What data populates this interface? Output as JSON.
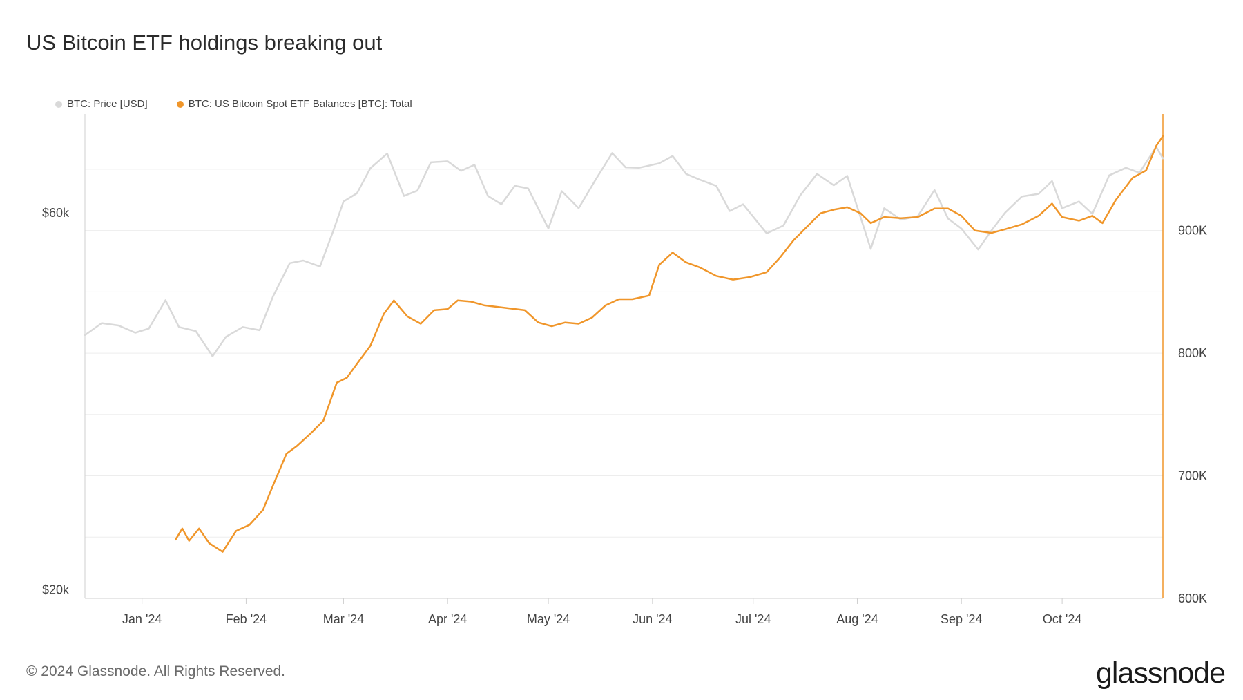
{
  "title": "US Bitcoin ETF holdings breaking out",
  "footer": "© 2024 Glassnode. All Rights Reserved.",
  "logo": "glassnode",
  "colors": {
    "price": "#d9d9d9",
    "etf": "#f0962a",
    "grid": "#ededed",
    "axis": "#cfcfcf"
  },
  "legend": [
    {
      "label": "BTC: Price [USD]",
      "color": "#d9d9d9"
    },
    {
      "label": "BTC: US Bitcoin Spot ETF Balances [BTC]: Total",
      "color": "#f0962a"
    }
  ],
  "chart_data": {
    "type": "line",
    "x_ticks": [
      "Jan '24",
      "Feb '24",
      "Mar '24",
      "Apr '24",
      "May '24",
      "Jun '24",
      "Jul '24",
      "Aug '24",
      "Sep '24",
      "Oct '24"
    ],
    "x_tick_dates": [
      "2024-01-01",
      "2024-02-01",
      "2024-03-01",
      "2024-04-01",
      "2024-05-01",
      "2024-06-01",
      "2024-07-01",
      "2024-08-01",
      "2024-09-01",
      "2024-10-01"
    ],
    "xlim": [
      "2023-12-15",
      "2024-10-31"
    ],
    "y_left": {
      "ticks": [
        "$20k",
        "$60k"
      ],
      "tick_values": [
        20000,
        60000
      ],
      "log_scale": true,
      "ylim": [
        19500,
        80000
      ]
    },
    "y_right": {
      "ticks": [
        "600K",
        "700K",
        "800K",
        "900K"
      ],
      "tick_values": [
        600000,
        700000,
        800000,
        900000
      ],
      "ylim": [
        600000,
        995000
      ]
    },
    "grid": true,
    "legend_position": "top-left",
    "series": [
      {
        "name": "BTC: Price [USD]",
        "axis": "left",
        "points": [
          [
            "2023-12-15",
            42000
          ],
          [
            "2023-12-20",
            43500
          ],
          [
            "2023-12-25",
            43200
          ],
          [
            "2023-12-30",
            42300
          ],
          [
            "2024-01-03",
            42800
          ],
          [
            "2024-01-08",
            46500
          ],
          [
            "2024-01-12",
            43000
          ],
          [
            "2024-01-17",
            42500
          ],
          [
            "2024-01-22",
            39500
          ],
          [
            "2024-01-26",
            41800
          ],
          [
            "2024-01-31",
            43000
          ],
          [
            "2024-02-05",
            42600
          ],
          [
            "2024-02-09",
            47000
          ],
          [
            "2024-02-14",
            51800
          ],
          [
            "2024-02-18",
            52200
          ],
          [
            "2024-02-23",
            51300
          ],
          [
            "2024-02-27",
            57000
          ],
          [
            "2024-03-01",
            62000
          ],
          [
            "2024-03-05",
            63500
          ],
          [
            "2024-03-09",
            68300
          ],
          [
            "2024-03-14",
            71300
          ],
          [
            "2024-03-19",
            63000
          ],
          [
            "2024-03-23",
            64000
          ],
          [
            "2024-03-27",
            69500
          ],
          [
            "2024-04-01",
            69700
          ],
          [
            "2024-04-05",
            67800
          ],
          [
            "2024-04-09",
            69000
          ],
          [
            "2024-04-13",
            63000
          ],
          [
            "2024-04-17",
            61500
          ],
          [
            "2024-04-21",
            64900
          ],
          [
            "2024-04-25",
            64400
          ],
          [
            "2024-05-01",
            57300
          ],
          [
            "2024-05-05",
            63900
          ],
          [
            "2024-05-10",
            60800
          ],
          [
            "2024-05-15",
            66000
          ],
          [
            "2024-05-20",
            71400
          ],
          [
            "2024-05-24",
            68500
          ],
          [
            "2024-05-28",
            68400
          ],
          [
            "2024-06-03",
            69300
          ],
          [
            "2024-06-07",
            70800
          ],
          [
            "2024-06-11",
            67200
          ],
          [
            "2024-06-15",
            66100
          ],
          [
            "2024-06-20",
            64900
          ],
          [
            "2024-06-24",
            60300
          ],
          [
            "2024-06-28",
            61500
          ],
          [
            "2024-07-05",
            56500
          ],
          [
            "2024-07-10",
            57800
          ],
          [
            "2024-07-15",
            63100
          ],
          [
            "2024-07-20",
            67200
          ],
          [
            "2024-07-25",
            65000
          ],
          [
            "2024-07-29",
            66800
          ],
          [
            "2024-08-05",
            54000
          ],
          [
            "2024-08-09",
            60800
          ],
          [
            "2024-08-14",
            58800
          ],
          [
            "2024-08-19",
            59400
          ],
          [
            "2024-08-24",
            64100
          ],
          [
            "2024-08-28",
            59000
          ],
          [
            "2024-09-01",
            57300
          ],
          [
            "2024-09-06",
            53900
          ],
          [
            "2024-09-10",
            57000
          ],
          [
            "2024-09-14",
            60000
          ],
          [
            "2024-09-19",
            62900
          ],
          [
            "2024-09-24",
            63400
          ],
          [
            "2024-09-28",
            65800
          ],
          [
            "2024-10-01",
            60800
          ],
          [
            "2024-10-06",
            62000
          ],
          [
            "2024-10-10",
            59800
          ],
          [
            "2024-10-15",
            66900
          ],
          [
            "2024-10-20",
            68400
          ],
          [
            "2024-10-24",
            67400
          ],
          [
            "2024-10-29",
            72700
          ],
          [
            "2024-10-31",
            70300
          ]
        ]
      },
      {
        "name": "BTC: US Bitcoin Spot ETF Balances [BTC]: Total",
        "axis": "right",
        "points": [
          [
            "2024-01-11",
            648000
          ],
          [
            "2024-01-13",
            657000
          ],
          [
            "2024-01-15",
            647000
          ],
          [
            "2024-01-18",
            657000
          ],
          [
            "2024-01-21",
            645000
          ],
          [
            "2024-01-25",
            638000
          ],
          [
            "2024-01-29",
            655000
          ],
          [
            "2024-02-02",
            660000
          ],
          [
            "2024-02-06",
            672000
          ],
          [
            "2024-02-09",
            692000
          ],
          [
            "2024-02-13",
            718000
          ],
          [
            "2024-02-16",
            724000
          ],
          [
            "2024-02-20",
            734000
          ],
          [
            "2024-02-24",
            745000
          ],
          [
            "2024-02-28",
            776000
          ],
          [
            "2024-03-02",
            780000
          ],
          [
            "2024-03-06",
            795000
          ],
          [
            "2024-03-09",
            806000
          ],
          [
            "2024-03-13",
            832000
          ],
          [
            "2024-03-16",
            843000
          ],
          [
            "2024-03-20",
            830000
          ],
          [
            "2024-03-24",
            824000
          ],
          [
            "2024-03-28",
            835000
          ],
          [
            "2024-04-01",
            836000
          ],
          [
            "2024-04-04",
            843000
          ],
          [
            "2024-04-08",
            842000
          ],
          [
            "2024-04-12",
            839000
          ],
          [
            "2024-04-18",
            837000
          ],
          [
            "2024-04-24",
            835000
          ],
          [
            "2024-04-28",
            825000
          ],
          [
            "2024-05-02",
            822000
          ],
          [
            "2024-05-06",
            825000
          ],
          [
            "2024-05-10",
            824000
          ],
          [
            "2024-05-14",
            829000
          ],
          [
            "2024-05-18",
            839000
          ],
          [
            "2024-05-22",
            844000
          ],
          [
            "2024-05-26",
            844000
          ],
          [
            "2024-05-31",
            847000
          ],
          [
            "2024-06-03",
            872000
          ],
          [
            "2024-06-07",
            882000
          ],
          [
            "2024-06-11",
            874000
          ],
          [
            "2024-06-15",
            870000
          ],
          [
            "2024-06-20",
            863000
          ],
          [
            "2024-06-25",
            860000
          ],
          [
            "2024-06-30",
            862000
          ],
          [
            "2024-07-05",
            866000
          ],
          [
            "2024-07-09",
            878000
          ],
          [
            "2024-07-13",
            892000
          ],
          [
            "2024-07-17",
            903000
          ],
          [
            "2024-07-21",
            914000
          ],
          [
            "2024-07-25",
            917000
          ],
          [
            "2024-07-29",
            919000
          ],
          [
            "2024-08-02",
            914000
          ],
          [
            "2024-08-05",
            906000
          ],
          [
            "2024-08-09",
            911000
          ],
          [
            "2024-08-14",
            910000
          ],
          [
            "2024-08-19",
            911000
          ],
          [
            "2024-08-24",
            918000
          ],
          [
            "2024-08-28",
            918000
          ],
          [
            "2024-09-01",
            912000
          ],
          [
            "2024-09-05",
            900000
          ],
          [
            "2024-09-10",
            898000
          ],
          [
            "2024-09-14",
            901000
          ],
          [
            "2024-09-19",
            905000
          ],
          [
            "2024-09-24",
            912000
          ],
          [
            "2024-09-28",
            922000
          ],
          [
            "2024-10-01",
            911000
          ],
          [
            "2024-10-06",
            908000
          ],
          [
            "2024-10-10",
            912000
          ],
          [
            "2024-10-13",
            906000
          ],
          [
            "2024-10-17",
            925000
          ],
          [
            "2024-10-22",
            943000
          ],
          [
            "2024-10-26",
            949000
          ],
          [
            "2024-10-29",
            969000
          ],
          [
            "2024-10-31",
            977000
          ]
        ]
      }
    ]
  }
}
